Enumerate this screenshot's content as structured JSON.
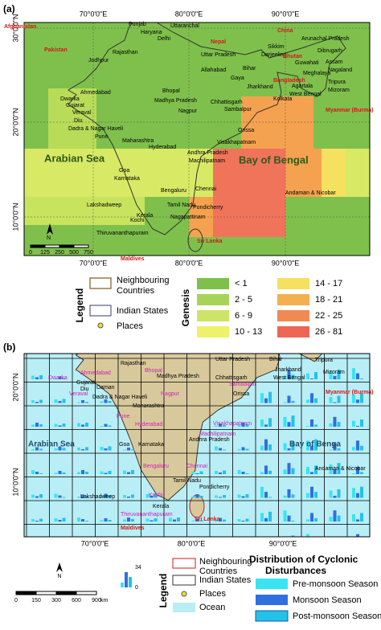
{
  "panel_a": {
    "label": "(a)",
    "top_ticks": [
      "70°0'0\"E",
      "80°0'0\"E",
      "90°0'0\"E"
    ],
    "left_ticks": [
      "30°0'0\"N",
      "20°0'0\"N",
      "10°0'0\"N"
    ],
    "places": [
      "Punjab",
      "Haryana",
      "Delhi",
      "Uttaranchal",
      "Rajasthan",
      "Jodhpur",
      "Uttar Pradesh",
      "Sikkim",
      "Arunachal Pradesh",
      "Darjeeling",
      "Dibrugarh",
      "Assam",
      "Guwahati",
      "Nagaland",
      "Meghalaya",
      "Allahabad",
      "Bihar",
      "Gaya",
      "Ahmedabad",
      "Bhopal",
      "Madhya Pradesh",
      "Jharkhand",
      "Agartala",
      "Tripura",
      "Mizoram",
      "West Bengal",
      "Kolkata",
      "Dwarka",
      "Gujarat",
      "Chhattisgarh",
      "Veraval",
      "Diu",
      "Dadra & Nagar Haveli",
      "Nagpur",
      "Sambalpur",
      "Orissa",
      "Maharashtra",
      "Pune",
      "Hyderabad",
      "Visakhapatnam",
      "Andhra Pradesh",
      "Machilipatnam",
      "Goa",
      "Karnataka",
      "Chennai",
      "Bengaluru",
      "Pondicherry",
      "Andaman & Nicobar",
      "Lakshadweep",
      "Tamil Nadu",
      "Nagapattinam",
      "Kochi",
      "Kerala",
      "Thiruvananthapuram"
    ],
    "countries": [
      "Afghanistan",
      "Pakistan",
      "China",
      "Nepal",
      "Bhutan",
      "Bangladesh",
      "Myanmar (Burma)",
      "Sri Lanka",
      "Maldives"
    ],
    "seas": [
      "Arabian Sea",
      "Bay of Bengal"
    ],
    "north": "N",
    "scale": [
      "0",
      "125",
      "250",
      "500",
      "750"
    ],
    "legend": {
      "title": "Legend",
      "neighbouring": [
        "Neighbouring",
        "Countries"
      ],
      "states": "Indian States",
      "places": "Places"
    },
    "genesis": {
      "title": "Genesis",
      "classes": [
        "< 1",
        "2 - 5",
        "6 - 9",
        "10 - 13",
        "14 - 17",
        "18 - 21",
        "22 - 25",
        "26 - 81"
      ]
    }
  },
  "panel_b": {
    "label": "(b)",
    "bottom_ticks": [
      "70°0'0\"E",
      "80°0'0\"E",
      "90°0'0\"E"
    ],
    "left_ticks": [
      "20°0'0\"N",
      "10°0'0\"N"
    ],
    "places": [
      "Rajasthan",
      "Uttar Pradesh",
      "Bihar",
      "Tripura",
      "Madhya Pradesh",
      "Jharkhand",
      "West Bengal",
      "Mizoram",
      "Gujarat",
      "Chhattisgarh",
      "Orissa",
      "Diu",
      "Daman",
      "Dadra & Nagar Haveli",
      "Maharashtra",
      "Andhra Pradesh",
      "Karnataka",
      "Goa",
      "Andaman & Nicobar",
      "Tamil Nadu",
      "Pondicherry",
      "Lakshadweep",
      "Kerala"
    ],
    "cities": [
      "Bhopal",
      "Ahmedabad",
      "Dwarka",
      "Sambalpur",
      "Veraval",
      "Nagpur",
      "Pune",
      "Hyderabad",
      "Visakhapatnam",
      "Machilipatnam",
      "Bengaluru",
      "Chennai",
      "Kochi",
      "Thiruvananthapuram"
    ],
    "countries": [
      "Myanmar (Burma)",
      "Sri Lanka",
      "Maldives"
    ],
    "seas": [
      "Arabian Sea",
      "Bay of Benga"
    ],
    "north": "N",
    "scale": [
      "0",
      "150",
      "300",
      "600",
      "900"
    ],
    "scale_unit": "km",
    "bar_scale": [
      "34",
      "0"
    ],
    "legend": {
      "title": "Legend",
      "neighbouring": [
        "Neighbouring",
        "Countries"
      ],
      "states": "Indian States",
      "places": "Places",
      "ocean": "Ocean"
    },
    "distribution": {
      "title": [
        "Distribution of Cyclonic",
        "Disturbances"
      ],
      "seasons": [
        "Pre-monsoon Season",
        "Monsoon Season",
        "Post-monsoon Season"
      ]
    }
  }
}
